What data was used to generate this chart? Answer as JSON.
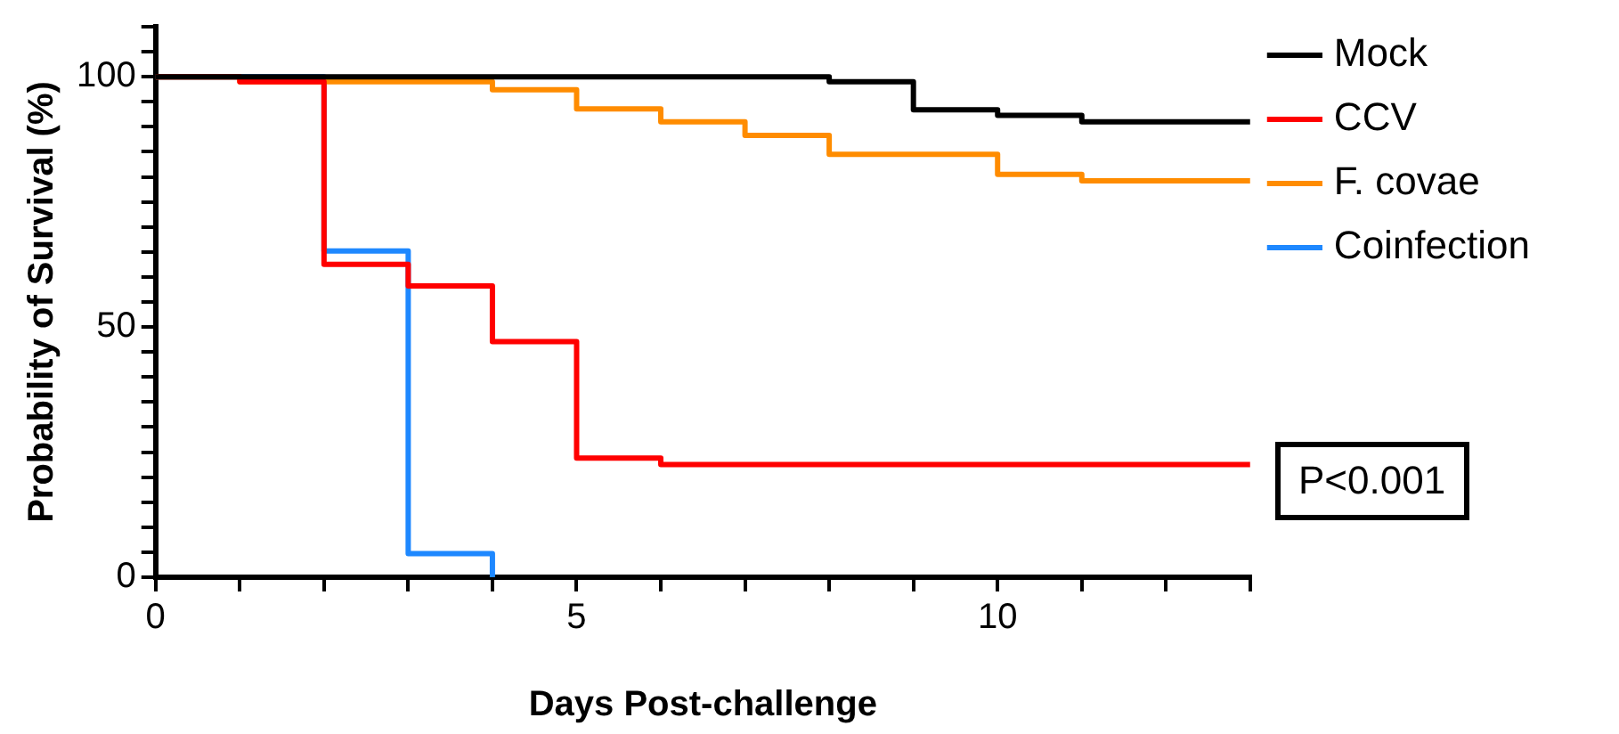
{
  "chart_data": {
    "type": "step",
    "xlabel": "Days Post-challenge",
    "ylabel": "Probability of Survival (%)",
    "series": [
      {
        "name": "Mock",
        "color": "#000000",
        "x": [
          0,
          8,
          9,
          10,
          11,
          13
        ],
        "values": [
          100,
          99,
          93.4,
          92.3,
          91,
          91
        ]
      },
      {
        "name": "CCV",
        "color": "#ff0000",
        "x": [
          0,
          1,
          2,
          3,
          4,
          5,
          6,
          13
        ],
        "values": [
          100,
          99,
          62.5,
          58.2,
          47.1,
          23.8,
          22.5,
          22.5
        ]
      },
      {
        "name": "F. covae",
        "color": "#ff8c00",
        "x": [
          0,
          1,
          4,
          5,
          6,
          7,
          8,
          10,
          11,
          13
        ],
        "values": [
          100,
          99,
          97.4,
          93.6,
          91,
          88.3,
          84.5,
          80.5,
          79.2,
          79.2
        ]
      },
      {
        "name": "Coinfection",
        "color": "#1e88ff",
        "x": [
          0,
          2,
          3,
          4
        ],
        "values": [
          100,
          65.2,
          4.7,
          0
        ]
      }
    ],
    "xlim": [
      0,
      13
    ],
    "xticks": [
      0,
      {
        "value": 1,
        "label": null
      },
      {
        "value": 2,
        "label": null
      },
      {
        "value": 3,
        "label": null
      },
      {
        "value": 4,
        "label": null
      },
      5,
      {
        "value": 6,
        "label": null
      },
      {
        "value": 7,
        "label": null
      },
      {
        "value": 8,
        "label": null
      },
      {
        "value": 9,
        "label": null
      },
      10,
      {
        "value": 11,
        "label": null
      },
      {
        "value": 12,
        "label": null
      },
      {
        "value": 13,
        "label": null
      }
    ],
    "ylim": [
      0,
      110
    ],
    "yticks": [
      0,
      {
        "value": 5,
        "label": null
      },
      {
        "value": 10,
        "label": null
      },
      {
        "value": 15,
        "label": null
      },
      {
        "value": 20,
        "label": null
      },
      {
        "value": 25,
        "label": null
      },
      {
        "value": 30,
        "label": null
      },
      {
        "value": 35,
        "label": null
      },
      {
        "value": 40,
        "label": null
      },
      {
        "value": 45,
        "label": null
      },
      50,
      {
        "value": 55,
        "label": null
      },
      {
        "value": 60,
        "label": null
      },
      {
        "value": 65,
        "label": null
      },
      {
        "value": 70,
        "label": null
      },
      {
        "value": 75,
        "label": null
      },
      {
        "value": 80,
        "label": null
      },
      {
        "value": 85,
        "label": null
      },
      {
        "value": 90,
        "label": null
      },
      {
        "value": 95,
        "label": null
      },
      100,
      {
        "value": 105,
        "label": null
      },
      {
        "value": 110,
        "label": null
      }
    ],
    "grid": false,
    "legend": "right",
    "marker": "none",
    "line_style": "solid",
    "annotations": [
      "P<0.001"
    ]
  }
}
